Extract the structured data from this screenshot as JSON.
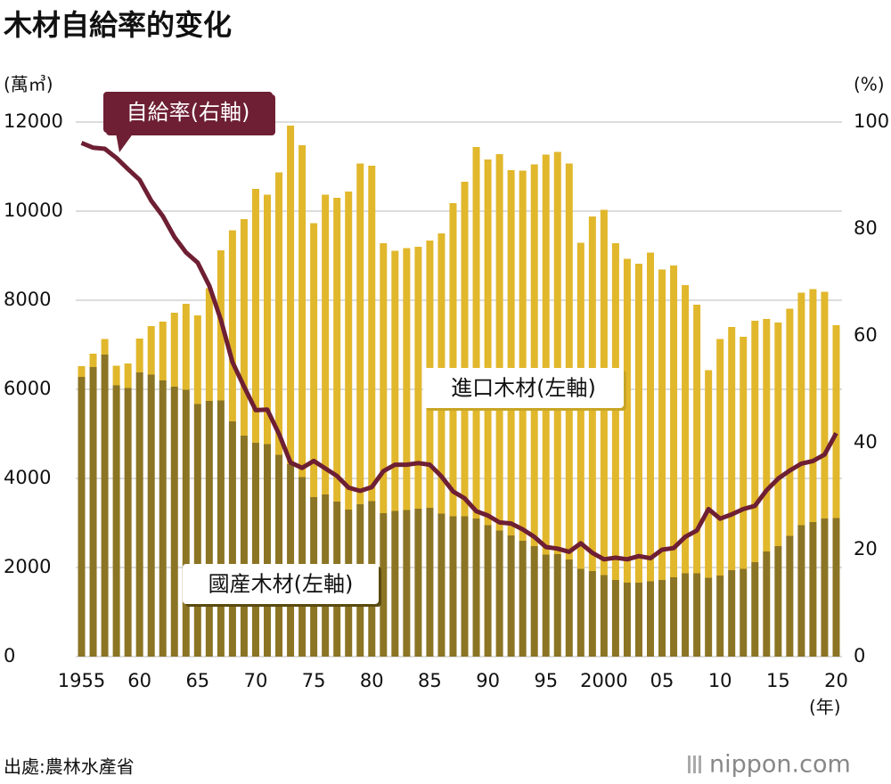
{
  "chart_data": {
    "type": "stacked-bar-line",
    "title": "木材自給率的变化",
    "y_unit": "(萬㎥)",
    "y2_unit": "(%)",
    "x_unit": "(年)",
    "source": "出處:農林水產省",
    "logo": "nippon.com",
    "categories": [
      "1955",
      null,
      null,
      null,
      null,
      "60",
      null,
      null,
      null,
      null,
      "65",
      null,
      null,
      null,
      null,
      "70",
      null,
      null,
      null,
      null,
      "75",
      null,
      null,
      null,
      null,
      "80",
      null,
      null,
      null,
      null,
      "85",
      null,
      null,
      null,
      null,
      "90",
      null,
      null,
      null,
      null,
      "95",
      null,
      null,
      null,
      null,
      "2000",
      null,
      null,
      null,
      null,
      "05",
      null,
      null,
      null,
      null,
      "10",
      null,
      null,
      null,
      null,
      "15",
      null,
      null,
      null,
      null,
      "20"
    ],
    "series": [
      {
        "name": "國産木材(左軸)",
        "color": "#8b7424",
        "values": [
          6280,
          6500,
          6780,
          6090,
          6030,
          6380,
          6330,
          6200,
          6060,
          5990,
          5670,
          5740,
          5750,
          5280,
          4960,
          4800,
          4770,
          4530,
          4320,
          4030,
          3580,
          3640,
          3480,
          3300,
          3420,
          3490,
          3220,
          3270,
          3290,
          3320,
          3340,
          3210,
          3150,
          3150,
          3100,
          2950,
          2830,
          2720,
          2600,
          2480,
          2290,
          2300,
          2180,
          1970,
          1920,
          1830,
          1720,
          1660,
          1660,
          1690,
          1720,
          1780,
          1870,
          1870,
          1770,
          1820,
          1940,
          1970,
          2120,
          2360,
          2480,
          2710,
          2950,
          3020,
          3100,
          3110
        ]
      },
      {
        "name": "進口木材(左軸)",
        "color": "#e1b72c",
        "values": [
          240,
          300,
          350,
          440,
          550,
          760,
          1090,
          1320,
          1660,
          1930,
          1990,
          2530,
          3370,
          4290,
          4860,
          5700,
          5600,
          6340,
          7600,
          7450,
          6150,
          6730,
          6820,
          7140,
          7650,
          7530,
          6060,
          5840,
          5880,
          5880,
          6000,
          6290,
          7030,
          7510,
          8340,
          8210,
          8450,
          8200,
          8310,
          8570,
          8980,
          9030,
          8890,
          7320,
          7960,
          8200,
          7560,
          7270,
          7160,
          7380,
          6970,
          7000,
          6470,
          6030,
          4660,
          5310,
          5460,
          5210,
          5420,
          5220,
          5020,
          5100,
          5220,
          5230,
          5090,
          4330
        ]
      },
      {
        "name": "自給率(右軸)",
        "color": "#6e1f33",
        "axis": "y2",
        "values": [
          96.1,
          95.2,
          95.0,
          93.3,
          91.2,
          89.2,
          85.3,
          82.4,
          78.5,
          75.6,
          73.7,
          69.4,
          63.0,
          55.1,
          50.5,
          46.1,
          46.2,
          41.7,
          36.3,
          35.3,
          36.6,
          35.2,
          33.8,
          31.6,
          31.0,
          31.7,
          34.7,
          35.9,
          35.9,
          36.2,
          35.9,
          33.7,
          30.9,
          29.6,
          27.2,
          26.4,
          25.1,
          24.9,
          23.8,
          22.4,
          20.5,
          20.2,
          19.6,
          21.2,
          19.4,
          18.2,
          18.5,
          18.2,
          18.8,
          18.4,
          20.0,
          20.3,
          22.4,
          23.6,
          27.6,
          25.8,
          26.6,
          27.6,
          28.2,
          31.1,
          33.3,
          34.8,
          36.1,
          36.6,
          37.8,
          41.8
        ]
      }
    ],
    "ylim": [
      0,
      12000
    ],
    "yticks": [
      0,
      2000,
      4000,
      6000,
      8000,
      10000,
      12000
    ],
    "y2lim": [
      0,
      100
    ],
    "y2ticks": [
      0,
      20,
      40,
      60,
      80,
      100
    ],
    "grid": true
  }
}
